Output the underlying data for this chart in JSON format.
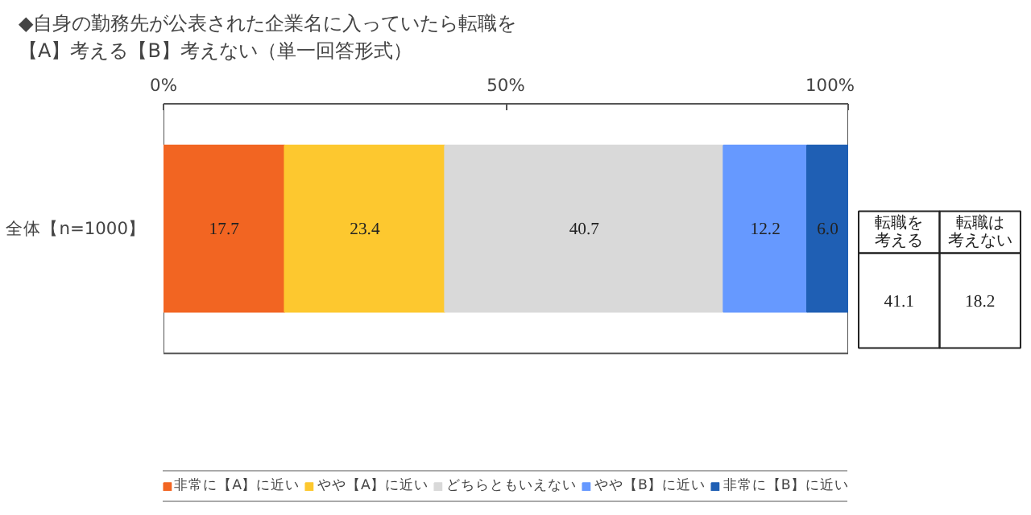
{
  "chart_data": {
    "type": "bar",
    "orientation": "horizontal",
    "stacked": true,
    "title": "◆自身の勤務先が公表された企業名に入っていたら転職を【A】考える【B】考えない（単一回答形式）",
    "categories": [
      "全体【n=1000】"
    ],
    "series": [
      {
        "name": "非常に【A】に近い",
        "color": "#f26522",
        "values": [
          17.7
        ],
        "value_labels": [
          "17.7"
        ]
      },
      {
        "name": "やや【A】に近い",
        "color": "#fdc82f",
        "values": [
          23.4
        ],
        "value_labels": [
          "23.4"
        ]
      },
      {
        "name": "どちらともいえない",
        "color": "#d9d9d9",
        "values": [
          40.7
        ],
        "value_labels": [
          "40.7"
        ]
      },
      {
        "name": "やや【B】に近い",
        "color": "#6699ff",
        "values": [
          12.2
        ],
        "value_labels": [
          "12.2"
        ]
      },
      {
        "name": "非常に【B】に近い",
        "color": "#1f5fb4",
        "values": [
          6.0
        ],
        "value_labels": [
          "6.0"
        ]
      }
    ],
    "xlim": [
      0,
      100
    ],
    "xticks": [
      {
        "value": 0,
        "label": "0%"
      },
      {
        "value": 50,
        "label": "50%"
      },
      {
        "value": 100,
        "label": "100%"
      }
    ],
    "data_labels": true,
    "grid": false,
    "legend": "bottom",
    "annotations": [
      "転職を考える",
      "41.1",
      "転職は考えない",
      "18.2"
    ]
  }
}
